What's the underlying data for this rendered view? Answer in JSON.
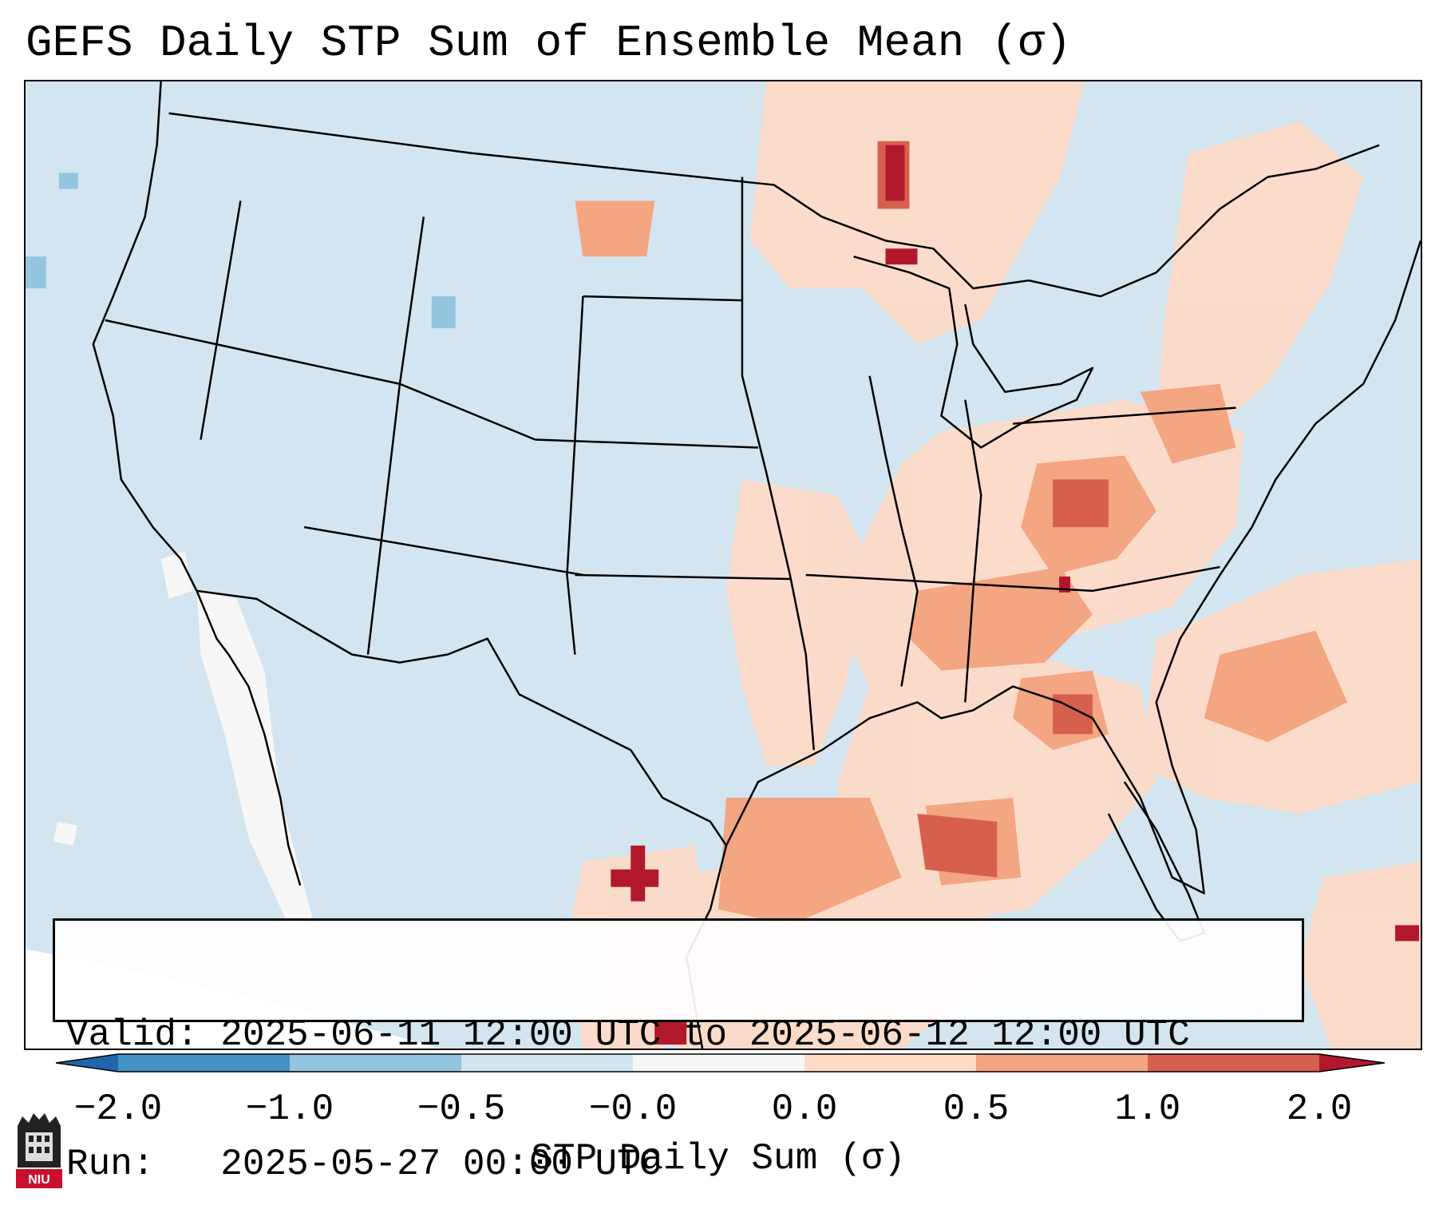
{
  "title": "GEFS Daily STP Sum of Ensemble Mean (σ)",
  "info": {
    "valid": "Valid: 2025-06-11 12:00 UTC to 2025-06-12 12:00 UTC",
    "run": "Run:   2025-05-27 00:00 UTC"
  },
  "colorbar": {
    "label": "STP Daily Sum (σ)",
    "ticks": [
      "−2.0",
      "−1.0",
      "−0.5",
      "−0.0",
      "0.0",
      "0.5",
      "1.0",
      "2.0"
    ],
    "bins": [
      {
        "from": -2.0,
        "to": -1.0,
        "color": "#4393c3"
      },
      {
        "from": -1.0,
        "to": -0.5,
        "color": "#92c5de"
      },
      {
        "from": -0.5,
        "to": 0.0,
        "color": "#d1e5f0"
      },
      {
        "from": 0.0,
        "to": 0.0,
        "color": "#f7f7f7"
      },
      {
        "from": 0.0,
        "to": 0.5,
        "color": "#fddbc7"
      },
      {
        "from": 0.5,
        "to": 1.0,
        "color": "#f4a582"
      },
      {
        "from": 1.0,
        "to": 2.0,
        "color": "#d6604d"
      }
    ],
    "under_color": "#2166ac",
    "over_color": "#b2182b"
  },
  "map": {
    "background": "#d1e5f0",
    "positive_regions": [
      "Northern Plains (ND/MN)",
      "Upper Great Lakes",
      "Ohio Valley",
      "Tennessee Valley",
      "Southeast US",
      "Gulf Coast",
      "Northeast US",
      "Western Atlantic"
    ],
    "neutral_regions": [
      "Southern California / Baja",
      "Eastern Pacific"
    ]
  },
  "logo": {
    "text": "NIU"
  }
}
